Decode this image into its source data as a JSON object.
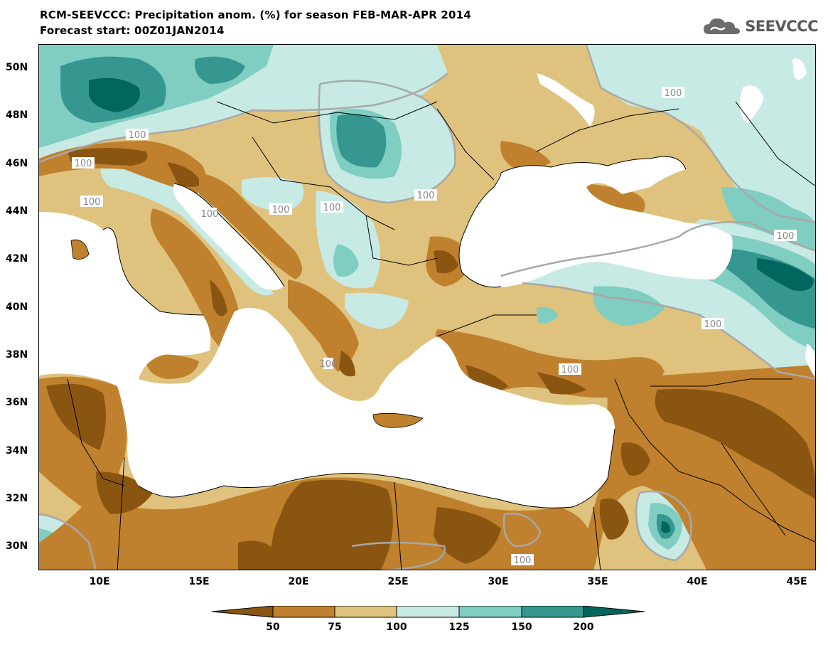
{
  "header": {
    "title": "RCM-SEEVCCC: Precipitation anom. (%) for season FEB-MAR-APR 2014",
    "subtitle": "Forecast start: 00Z01JAN2014",
    "logo_text": "SEEVCCC"
  },
  "map": {
    "lat_labels": [
      "50N",
      "48N",
      "46N",
      "44N",
      "42N",
      "40N",
      "38N",
      "36N",
      "34N",
      "32N",
      "30N"
    ],
    "lon_labels": [
      "10E",
      "15E",
      "20E",
      "25E",
      "30E",
      "35E",
      "40E",
      "45E"
    ],
    "contour_labels": [
      "100",
      "100",
      "100",
      "100",
      "100",
      "100",
      "100",
      "100",
      "100",
      "100",
      "100",
      "100",
      "100"
    ],
    "colors": {
      "sea": "#ffffff",
      "class_lt50": "#8a5510",
      "class_50_75": "#bf812d",
      "class_75_100": "#dfc27d",
      "class_100_125": "#c7eae5",
      "class_125_150": "#80cdc1",
      "class_150_200": "#35978f",
      "class_gt200": "#01665e",
      "contour": "#a0a0a0",
      "border": "#000000"
    }
  },
  "legend": {
    "labels": [
      "50",
      "75",
      "100",
      "125",
      "150",
      "200"
    ]
  }
}
